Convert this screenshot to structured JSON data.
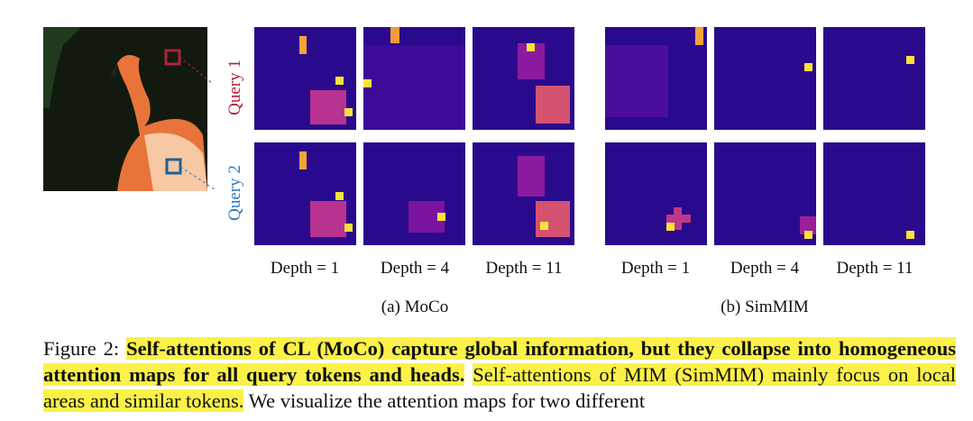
{
  "figure": {
    "query_labels": [
      "Query 1",
      "Query 2"
    ],
    "groups": [
      {
        "label": "(a) MoCo",
        "depths": [
          "Depth = 1",
          "Depth = 4",
          "Depth = 11"
        ]
      },
      {
        "label": "(b) SimMIM",
        "depths": [
          "Depth = 1",
          "Depth = 4",
          "Depth = 11"
        ]
      }
    ]
  },
  "caption": {
    "prefix": "Figure 2:",
    "bold": "Self-attentions of CL (MoCo) capture global information, but they collapse into homogeneous attention maps for all query tokens and heads.",
    "highlight": "Self-attentions of MIM (SimMIM) mainly focus on local areas and similar tokens.",
    "rest": "We visualize the attention maps for two different"
  }
}
